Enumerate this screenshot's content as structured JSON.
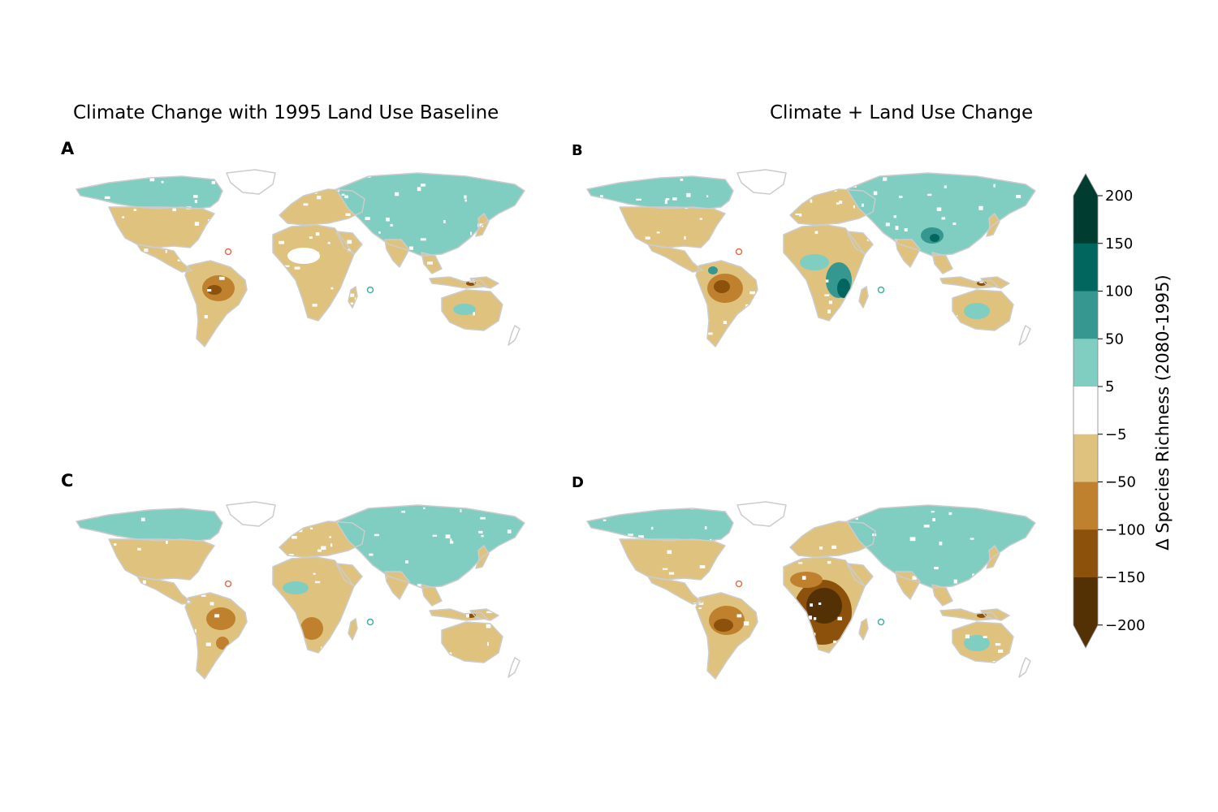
{
  "titles": {
    "left": "Climate Change with 1995 Land Use Baseline",
    "right": "Climate + Land Use Change"
  },
  "panels": [
    {
      "id": "A",
      "label": "A",
      "column": "left",
      "row": "top",
      "dominant": {
        "north": "5 to 50",
        "tropics": "-50 to -100",
        "africa": "-5 to -50"
      }
    },
    {
      "id": "B",
      "label": "B",
      "column": "right",
      "row": "top",
      "dominant": {
        "north": "5 to 50",
        "tropics": "-50 to -100",
        "africa": "50 to 200"
      }
    },
    {
      "id": "C",
      "label": "C",
      "column": "left",
      "row": "bottom",
      "dominant": {
        "north": "5 to 50",
        "tropics": "-50 to -100",
        "africa": "-5 to -50"
      }
    },
    {
      "id": "D",
      "label": "D",
      "column": "right",
      "row": "bottom",
      "dominant": {
        "north": "5 to 50",
        "tropics": "-50 to -100",
        "africa": "-150 to -200"
      }
    }
  ],
  "colorbar": {
    "label": "Δ Species Richness (2080-1995)",
    "ticks": [
      "200",
      "150",
      "100",
      "50",
      "5",
      "−5",
      "−50",
      "−100",
      "−150",
      "−200"
    ],
    "extend": "both",
    "bins": [
      {
        "range": "150 to 200",
        "color": "#003c30"
      },
      {
        "range": "100 to 150",
        "color": "#01665e"
      },
      {
        "range": "50 to 100",
        "color": "#35978f"
      },
      {
        "range": "5 to 50",
        "color": "#80cdc1"
      },
      {
        "range": "-5 to 5",
        "color": "#ffffff"
      },
      {
        "range": "-50 to -5",
        "color": "#dfc27d"
      },
      {
        "range": "-100 to -50",
        "color": "#bf812d"
      },
      {
        "range": "-150 to -100",
        "color": "#8c510a"
      },
      {
        "range": "-200 to -150",
        "color": "#543005"
      }
    ],
    "over_color": "#003c30",
    "under_color": "#543005"
  },
  "coastline_color": "#cccccc",
  "markers": {
    "color_a": "#e07050",
    "color_b": "#40b0a0"
  }
}
